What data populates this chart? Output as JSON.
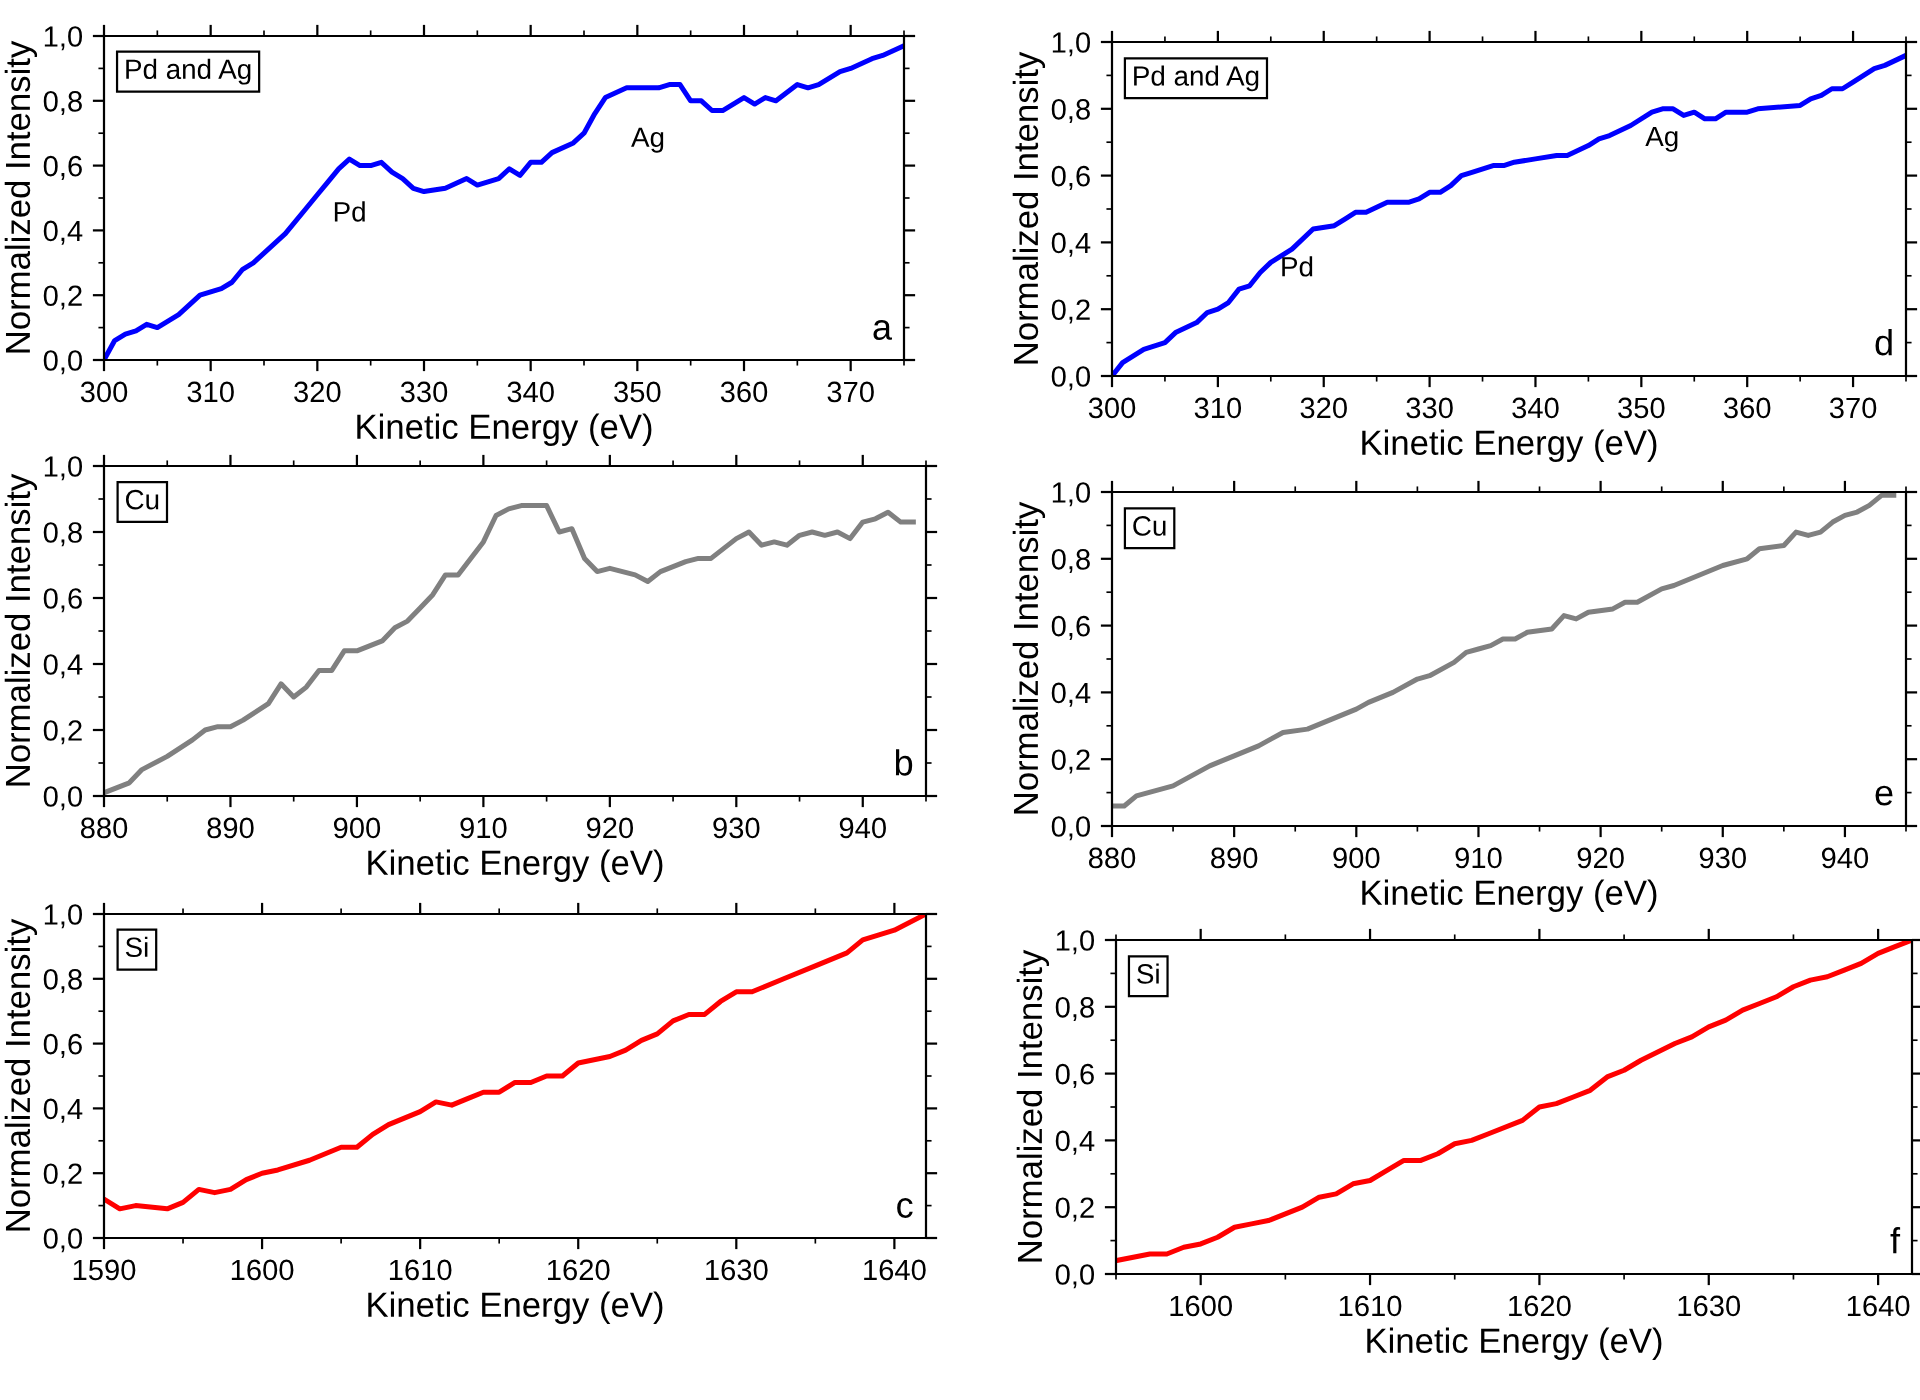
{
  "chart_data": [
    {
      "type": "line",
      "xlabel": "Kinetic Energy (eV)",
      "ylabel": "Normalized Intensity",
      "annotations": [
        "Pd and Ag",
        "Pd",
        "Ag",
        "a"
      ],
      "xlim": [
        300,
        375
      ],
      "xticks": [
        300,
        310,
        320,
        330,
        340,
        350,
        360,
        370
      ],
      "ylim": [
        0,
        1
      ],
      "yticks": [
        {
          "value": 0,
          "label": "0,0"
        },
        {
          "value": 0.2,
          "label": "0,2"
        },
        {
          "value": 0.4,
          "label": "0,4"
        },
        {
          "value": 0.6,
          "label": "0,6"
        },
        {
          "value": 0.8,
          "label": "0,8"
        },
        {
          "value": 1,
          "label": "1,0"
        }
      ],
      "series": [
        {
          "color": "#0000ff",
          "x": [
            300,
            301,
            302,
            303,
            304,
            305,
            306,
            307,
            308,
            309,
            310,
            311,
            312,
            313,
            314,
            315,
            317,
            319,
            320,
            321,
            322,
            323,
            324,
            325,
            326,
            327,
            328,
            329,
            330,
            332,
            334,
            335,
            336,
            337,
            338,
            339,
            340,
            341,
            342,
            344,
            345,
            346,
            347,
            349,
            352,
            353,
            354,
            355,
            356,
            357,
            358,
            360,
            361,
            362,
            363,
            365,
            366,
            367,
            369,
            370,
            372,
            373,
            375
          ],
          "values": [
            0,
            0.06,
            0.08,
            0.09,
            0.11,
            0.1,
            0.12,
            0.14,
            0.17,
            0.2,
            0.21,
            0.22,
            0.24,
            0.28,
            0.3,
            0.33,
            0.39,
            0.47,
            0.51,
            0.55,
            0.59,
            0.62,
            0.6,
            0.6,
            0.61,
            0.58,
            0.56,
            0.53,
            0.52,
            0.53,
            0.56,
            0.54,
            0.55,
            0.56,
            0.59,
            0.57,
            0.61,
            0.61,
            0.64,
            0.67,
            0.7,
            0.76,
            0.81,
            0.84,
            0.84,
            0.85,
            0.85,
            0.8,
            0.8,
            0.77,
            0.77,
            0.81,
            0.79,
            0.81,
            0.8,
            0.85,
            0.84,
            0.85,
            0.89,
            0.9,
            0.93,
            0.94,
            0.97
          ]
        }
      ]
    },
    {
      "type": "line",
      "xlabel": "Kinetic Energy (eV)",
      "ylabel": "Normalized Intensity",
      "annotations": [
        "Pd and Ag",
        "Pd",
        "Ag",
        "d"
      ],
      "xlim": [
        300,
        375
      ],
      "xticks": [
        300,
        310,
        320,
        330,
        340,
        350,
        360,
        370
      ],
      "ylim": [
        0,
        1
      ],
      "yticks": [
        {
          "value": 0,
          "label": "0,0"
        },
        {
          "value": 0.2,
          "label": "0,2"
        },
        {
          "value": 0.4,
          "label": "0,4"
        },
        {
          "value": 0.6,
          "label": "0,6"
        },
        {
          "value": 0.8,
          "label": "0,8"
        },
        {
          "value": 1,
          "label": "1,0"
        }
      ],
      "series": [
        {
          "color": "#0000ff",
          "x": [
            300,
            301,
            303,
            305,
            306,
            308,
            309,
            310,
            311,
            312,
            313,
            314,
            315,
            317,
            319,
            321,
            322,
            323,
            324,
            326,
            328,
            329,
            330,
            331,
            332,
            333,
            334,
            336,
            337,
            338,
            340,
            342,
            343,
            345,
            346,
            347,
            349,
            351,
            352,
            353,
            354,
            355,
            356,
            357,
            358,
            360,
            361,
            365,
            366,
            367,
            368,
            369,
            370,
            372,
            373,
            375
          ],
          "values": [
            0,
            0.04,
            0.08,
            0.1,
            0.13,
            0.16,
            0.19,
            0.2,
            0.22,
            0.26,
            0.27,
            0.31,
            0.34,
            0.38,
            0.44,
            0.45,
            0.47,
            0.49,
            0.49,
            0.52,
            0.52,
            0.53,
            0.55,
            0.55,
            0.57,
            0.6,
            0.61,
            0.63,
            0.63,
            0.64,
            0.65,
            0.66,
            0.66,
            0.69,
            0.71,
            0.72,
            0.75,
            0.79,
            0.8,
            0.8,
            0.78,
            0.79,
            0.77,
            0.77,
            0.79,
            0.79,
            0.8,
            0.81,
            0.83,
            0.84,
            0.86,
            0.86,
            0.88,
            0.92,
            0.93,
            0.96
          ]
        }
      ]
    },
    {
      "type": "line",
      "xlabel": "Kinetic Energy (eV)",
      "ylabel": "Normalized Intensity",
      "annotations": [
        "Cu",
        "b"
      ],
      "xlim": [
        880,
        945
      ],
      "xticks": [
        880,
        890,
        900,
        910,
        920,
        930,
        940
      ],
      "ylim": [
        0,
        1
      ],
      "yticks": [
        {
          "value": 0,
          "label": "0,0"
        },
        {
          "value": 0.2,
          "label": "0,2"
        },
        {
          "value": 0.4,
          "label": "0,4"
        },
        {
          "value": 0.6,
          "label": "0,6"
        },
        {
          "value": 0.8,
          "label": "0,8"
        },
        {
          "value": 1,
          "label": "1,0"
        }
      ],
      "series": [
        {
          "color": "#808080",
          "x": [
            880,
            882,
            883,
            885,
            887,
            888,
            889,
            890,
            891,
            893,
            894,
            895,
            896,
            897,
            898,
            899,
            900,
            902,
            903,
            904,
            905,
            906,
            907,
            908,
            909,
            910,
            911,
            912,
            913,
            915,
            916,
            917,
            918,
            919,
            920,
            922,
            923,
            924,
            926,
            927,
            928,
            930,
            931,
            932,
            933,
            934,
            935,
            936,
            937,
            938,
            939,
            940,
            941,
            942,
            943,
            944
          ],
          "values": [
            0.01,
            0.04,
            0.08,
            0.12,
            0.17,
            0.2,
            0.21,
            0.21,
            0.23,
            0.28,
            0.34,
            0.3,
            0.33,
            0.38,
            0.38,
            0.44,
            0.44,
            0.47,
            0.51,
            0.53,
            0.57,
            0.61,
            0.67,
            0.67,
            0.72,
            0.77,
            0.85,
            0.87,
            0.88,
            0.88,
            0.8,
            0.81,
            0.72,
            0.68,
            0.69,
            0.67,
            0.65,
            0.68,
            0.71,
            0.72,
            0.72,
            0.78,
            0.8,
            0.76,
            0.77,
            0.76,
            0.79,
            0.8,
            0.79,
            0.8,
            0.78,
            0.83,
            0.84,
            0.86,
            0.83,
            0.83
          ]
        }
      ]
    },
    {
      "type": "line",
      "xlabel": "Kinetic Energy (eV)",
      "ylabel": "Normalized Intensity",
      "annotations": [
        "Cu",
        "e"
      ],
      "xlim": [
        880,
        945
      ],
      "xticks": [
        880,
        890,
        900,
        910,
        920,
        930,
        940
      ],
      "ylim": [
        0,
        1
      ],
      "yticks": [
        {
          "value": 0,
          "label": "0,0"
        },
        {
          "value": 0.2,
          "label": "0,2"
        },
        {
          "value": 0.4,
          "label": "0,4"
        },
        {
          "value": 0.6,
          "label": "0,6"
        },
        {
          "value": 0.8,
          "label": "0,8"
        },
        {
          "value": 1,
          "label": "1,0"
        }
      ],
      "series": [
        {
          "color": "#808080",
          "x": [
            880,
            881,
            882,
            885,
            888,
            890,
            892,
            893,
            894,
            896,
            898,
            900,
            901,
            903,
            905,
            906,
            908,
            909,
            910,
            911,
            912,
            913,
            914,
            916,
            917,
            918,
            919,
            921,
            922,
            923,
            925,
            926,
            928,
            930,
            932,
            933,
            935,
            936,
            937,
            938,
            939,
            940,
            941,
            942,
            943,
            944
          ],
          "values": [
            0.06,
            0.06,
            0.09,
            0.12,
            0.18,
            0.21,
            0.24,
            0.26,
            0.28,
            0.29,
            0.32,
            0.35,
            0.37,
            0.4,
            0.44,
            0.45,
            0.49,
            0.52,
            0.53,
            0.54,
            0.56,
            0.56,
            0.58,
            0.59,
            0.63,
            0.62,
            0.64,
            0.65,
            0.67,
            0.67,
            0.71,
            0.72,
            0.75,
            0.78,
            0.8,
            0.83,
            0.84,
            0.88,
            0.87,
            0.88,
            0.91,
            0.93,
            0.94,
            0.96,
            0.99,
            0.99
          ]
        }
      ]
    },
    {
      "type": "line",
      "xlabel": "Kinetic Energy (eV)",
      "ylabel": "Normalized Intensity",
      "annotations": [
        "Si",
        "c"
      ],
      "xlim": [
        1590,
        1642
      ],
      "xticks": [
        1590,
        1600,
        1610,
        1620,
        1630,
        1640
      ],
      "ylim": [
        0,
        1
      ],
      "yticks": [
        {
          "value": 0,
          "label": "0,0"
        },
        {
          "value": 0.2,
          "label": "0,2"
        },
        {
          "value": 0.4,
          "label": "0,4"
        },
        {
          "value": 0.6,
          "label": "0,6"
        },
        {
          "value": 0.8,
          "label": "0,8"
        },
        {
          "value": 1,
          "label": "1,0"
        }
      ],
      "series": [
        {
          "color": "#ff0000",
          "x": [
            1590,
            1591,
            1592,
            1594,
            1595,
            1596,
            1597,
            1598,
            1599,
            1600,
            1601,
            1603,
            1605,
            1606,
            1607,
            1608,
            1609,
            1610,
            1611,
            1612,
            1613,
            1614,
            1615,
            1616,
            1617,
            1618,
            1619,
            1620,
            1622,
            1623,
            1624,
            1625,
            1626,
            1627,
            1628,
            1629,
            1630,
            1631,
            1633,
            1635,
            1637,
            1638,
            1640,
            1642
          ],
          "values": [
            0.12,
            0.09,
            0.1,
            0.09,
            0.11,
            0.15,
            0.14,
            0.15,
            0.18,
            0.2,
            0.21,
            0.24,
            0.28,
            0.28,
            0.32,
            0.35,
            0.37,
            0.39,
            0.42,
            0.41,
            0.43,
            0.45,
            0.45,
            0.48,
            0.48,
            0.5,
            0.5,
            0.54,
            0.56,
            0.58,
            0.61,
            0.63,
            0.67,
            0.69,
            0.69,
            0.73,
            0.76,
            0.76,
            0.8,
            0.84,
            0.88,
            0.92,
            0.95,
            1.0
          ]
        }
      ]
    },
    {
      "type": "line",
      "xlabel": "Kinetic Energy (eV)",
      "ylabel": "Normalized Intensity",
      "annotations": [
        "Si",
        "f"
      ],
      "xlim": [
        1595,
        1642
      ],
      "xticks": [
        1600,
        1610,
        1620,
        1630,
        1640
      ],
      "ylim": [
        0,
        1
      ],
      "yticks": [
        {
          "value": 0,
          "label": "0,0"
        },
        {
          "value": 0.2,
          "label": "0,2"
        },
        {
          "value": 0.4,
          "label": "0,4"
        },
        {
          "value": 0.6,
          "label": "0,6"
        },
        {
          "value": 0.8,
          "label": "0,8"
        },
        {
          "value": 1,
          "label": "1,0"
        }
      ],
      "series": [
        {
          "color": "#ff0000",
          "x": [
            1595,
            1597,
            1598,
            1599,
            1600,
            1601,
            1602,
            1603,
            1604,
            1605,
            1606,
            1607,
            1608,
            1609,
            1610,
            1611,
            1612,
            1613,
            1614,
            1615,
            1616,
            1617,
            1619,
            1620,
            1621,
            1622,
            1623,
            1624,
            1625,
            1626,
            1628,
            1629,
            1630,
            1631,
            1632,
            1633,
            1634,
            1635,
            1636,
            1637,
            1638,
            1639,
            1640,
            1641,
            1642
          ],
          "values": [
            0.04,
            0.06,
            0.06,
            0.08,
            0.09,
            0.11,
            0.14,
            0.15,
            0.16,
            0.18,
            0.2,
            0.23,
            0.24,
            0.27,
            0.28,
            0.31,
            0.34,
            0.34,
            0.36,
            0.39,
            0.4,
            0.42,
            0.46,
            0.5,
            0.51,
            0.53,
            0.55,
            0.59,
            0.61,
            0.64,
            0.69,
            0.71,
            0.74,
            0.76,
            0.79,
            0.81,
            0.83,
            0.86,
            0.88,
            0.89,
            0.91,
            0.93,
            0.96,
            0.98,
            1.0
          ]
        }
      ]
    }
  ]
}
